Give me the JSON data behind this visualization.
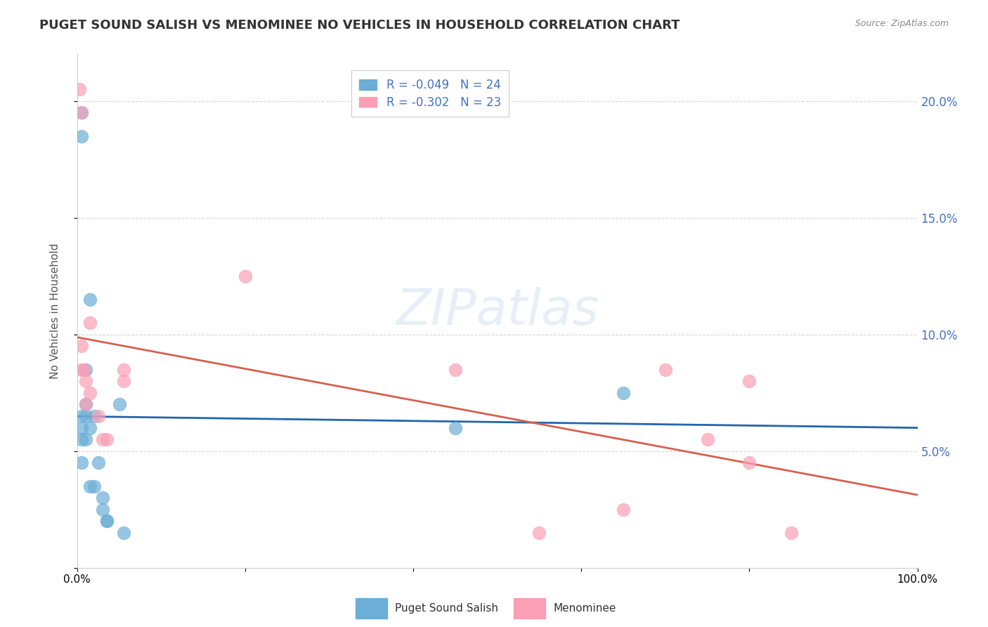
{
  "title": "PUGET SOUND SALISH VS MENOMINEE NO VEHICLES IN HOUSEHOLD CORRELATION CHART",
  "source": "Source: ZipAtlas.com",
  "xlabel": "",
  "ylabel": "No Vehicles in Household",
  "legend_labels": [
    "Puget Sound Salish",
    "Menominee"
  ],
  "series1_label": "R = -0.049   N = 24",
  "series2_label": "R = -0.302   N = 23",
  "blue_color": "#6baed6",
  "pink_color": "#fa9fb5",
  "blue_line_color": "#2166ac",
  "pink_line_color": "#d6604d",
  "watermark": "ZIPatlas",
  "blue_R": -0.049,
  "blue_N": 24,
  "pink_R": -0.302,
  "pink_N": 23,
  "xlim": [
    0,
    100
  ],
  "ylim": [
    0,
    22
  ],
  "yticks": [
    0,
    5,
    10,
    15,
    20
  ],
  "ytick_labels": [
    "",
    "5.0%",
    "10.0%",
    "15.0%",
    "20.0%"
  ],
  "xticks": [
    0,
    20,
    40,
    60,
    80,
    100
  ],
  "xtick_labels": [
    "0.0%",
    "",
    "",
    "",
    "",
    "100.0%"
  ],
  "blue_points_x": [
    0.5,
    0.5,
    0.5,
    0.5,
    0.5,
    0.5,
    1.0,
    1.0,
    1.0,
    1.0,
    1.5,
    1.5,
    1.5,
    2.0,
    2.0,
    2.5,
    3.0,
    3.0,
    3.5,
    3.5,
    5.0,
    5.5,
    45.0,
    65.0
  ],
  "blue_points_y": [
    19.5,
    18.5,
    6.5,
    6.0,
    5.5,
    4.5,
    8.5,
    7.0,
    6.5,
    5.5,
    11.5,
    6.0,
    3.5,
    6.5,
    3.5,
    4.5,
    3.0,
    2.5,
    2.0,
    2.0,
    7.0,
    1.5,
    6.0,
    7.5
  ],
  "pink_points_x": [
    0.3,
    0.5,
    0.5,
    0.5,
    0.8,
    1.0,
    1.0,
    1.5,
    1.5,
    2.5,
    3.0,
    3.5,
    5.5,
    5.5,
    20.0,
    45.0,
    55.0,
    65.0,
    70.0,
    75.0,
    80.0,
    80.0,
    85.0
  ],
  "pink_points_y": [
    20.5,
    19.5,
    9.5,
    8.5,
    8.5,
    8.0,
    7.0,
    10.5,
    7.5,
    6.5,
    5.5,
    5.5,
    8.5,
    8.0,
    12.5,
    8.5,
    1.5,
    2.5,
    8.5,
    5.5,
    8.0,
    4.5,
    1.5
  ]
}
